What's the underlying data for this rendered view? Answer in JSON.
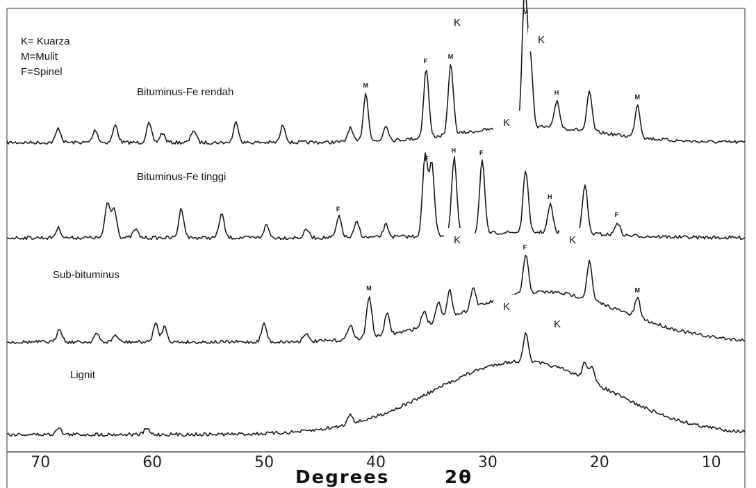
{
  "chart_data": {
    "type": "line",
    "title": "",
    "xlabel": "Degrees",
    "xlabel_symbol": "2θ",
    "xlim": [
      73,
      7
    ],
    "x_ticks": [
      "70",
      "60",
      "50",
      "40",
      "30",
      "20",
      "10"
    ],
    "legend": [
      "K= Kuarza",
      "M=Mulit",
      "F=Spinel"
    ],
    "series": [
      {
        "name": "Bituminus-Fe rendah",
        "peaks": [
          {
            "x": 68.4,
            "h": 0.18
          },
          {
            "x": 65.1,
            "h": 0.16
          },
          {
            "x": 63.3,
            "h": 0.22
          },
          {
            "x": 60.3,
            "h": 0.24
          },
          {
            "x": 59.1,
            "h": 0.12
          },
          {
            "x": 56.3,
            "h": 0.16
          },
          {
            "x": 52.5,
            "h": 0.26
          },
          {
            "x": 48.3,
            "h": 0.22
          },
          {
            "x": 42.3,
            "h": 0.18
          },
          {
            "x": 40.9,
            "h": 0.62
          },
          {
            "x": 39.1,
            "h": 0.2
          },
          {
            "x": 35.5,
            "h": 0.88
          },
          {
            "x": 33.3,
            "h": 0.9
          },
          {
            "x": 26.7,
            "h": 1.7
          },
          {
            "x": 26.2,
            "h": 0.85
          },
          {
            "x": 23.8,
            "h": 0.35
          },
          {
            "x": 20.9,
            "h": 0.5
          },
          {
            "x": 16.6,
            "h": 0.42
          }
        ],
        "hump": {
          "center": 26,
          "width": 9,
          "h": 0.2
        },
        "peak_labels": [
          {
            "x": 40.9,
            "text": "M"
          },
          {
            "x": 35.5,
            "text": "F"
          },
          {
            "x": 33.3,
            "text": "M"
          },
          {
            "x": 26.6,
            "text": "M"
          },
          {
            "x": 23.8,
            "text": "H"
          },
          {
            "x": 16.6,
            "text": "M"
          }
        ]
      },
      {
        "name": "Bituminus-Fe tinggi",
        "peaks": [
          {
            "x": 68.4,
            "h": 0.14
          },
          {
            "x": 64.0,
            "h": 0.5
          },
          {
            "x": 63.4,
            "h": 0.42
          },
          {
            "x": 61.5,
            "h": 0.12
          },
          {
            "x": 57.4,
            "h": 0.42
          },
          {
            "x": 53.8,
            "h": 0.34
          },
          {
            "x": 49.8,
            "h": 0.18
          },
          {
            "x": 46.2,
            "h": 0.12
          },
          {
            "x": 43.3,
            "h": 0.3
          },
          {
            "x": 41.7,
            "h": 0.22
          },
          {
            "x": 39.1,
            "h": 0.18
          },
          {
            "x": 35.6,
            "h": 1.15
          },
          {
            "x": 35.0,
            "h": 1.05
          },
          {
            "x": 33.0,
            "h": 1.1
          },
          {
            "x": 30.5,
            "h": 1.05
          },
          {
            "x": 26.6,
            "h": 0.9
          },
          {
            "x": 24.4,
            "h": 0.4
          },
          {
            "x": 21.3,
            "h": 0.7
          },
          {
            "x": 18.4,
            "h": 0.18
          }
        ],
        "hump": {
          "center": 26,
          "width": 9,
          "h": 0.08
        },
        "peak_labels": [
          {
            "x": 43.3,
            "text": "F"
          },
          {
            "x": 35.4,
            "text": "F"
          },
          {
            "x": 33.0,
            "text": "H"
          },
          {
            "x": 30.5,
            "text": "F"
          },
          {
            "x": 24.4,
            "text": "H"
          },
          {
            "x": 18.4,
            "text": "F"
          }
        ]
      },
      {
        "name": "Sub-bituminus",
        "peaks": [
          {
            "x": 68.3,
            "h": 0.2
          },
          {
            "x": 65.0,
            "h": 0.12
          },
          {
            "x": 63.3,
            "h": 0.1
          },
          {
            "x": 59.7,
            "h": 0.26
          },
          {
            "x": 58.9,
            "h": 0.22
          },
          {
            "x": 50.0,
            "h": 0.26
          },
          {
            "x": 46.3,
            "h": 0.12
          },
          {
            "x": 42.3,
            "h": 0.22
          },
          {
            "x": 40.6,
            "h": 0.6
          },
          {
            "x": 39.0,
            "h": 0.3
          },
          {
            "x": 35.7,
            "h": 0.22
          },
          {
            "x": 34.4,
            "h": 0.3
          },
          {
            "x": 33.4,
            "h": 0.38
          },
          {
            "x": 31.3,
            "h": 0.3
          },
          {
            "x": 26.6,
            "h": 0.55
          },
          {
            "x": 20.9,
            "h": 0.55
          },
          {
            "x": 16.6,
            "h": 0.28
          }
        ],
        "hump": {
          "center": 25,
          "width": 10,
          "h": 0.72
        },
        "peak_labels": [
          {
            "x": 40.6,
            "text": "M"
          },
          {
            "x": 26.6,
            "text": "F"
          },
          {
            "x": 16.6,
            "text": "M"
          }
        ]
      },
      {
        "name": "Lignit",
        "peaks": [
          {
            "x": 68.4,
            "h": 0.1
          },
          {
            "x": 60.5,
            "h": 0.08
          },
          {
            "x": 42.3,
            "h": 0.14
          },
          {
            "x": 26.6,
            "h": 0.38
          },
          {
            "x": 21.3,
            "h": 0.22
          },
          {
            "x": 20.7,
            "h": 0.2
          }
        ],
        "hump": {
          "center": 27,
          "width": 11,
          "h": 1.0
        },
        "peak_labels": []
      }
    ],
    "phase_labels": [
      {
        "series": "Bituminus-Fe rendah",
        "x": 26.5,
        "text": "K"
      },
      {
        "series": "Bituminus-Fe rendah",
        "x": 33.3,
        "text": "K"
      },
      {
        "series": "Bituminus-Fe tinggi",
        "x": 30.0,
        "text": "K"
      },
      {
        "series": "Bituminus-Fe tinggi",
        "x": 35.0,
        "text": "K"
      },
      {
        "series": "Bituminus-Fe tinggi",
        "x": 21.5,
        "text": "K"
      },
      {
        "series": "Sub-bituminus",
        "x": 30.0,
        "text": "K"
      },
      {
        "series": "Sub-bituminus",
        "x": 23.0,
        "text": "K"
      }
    ]
  }
}
